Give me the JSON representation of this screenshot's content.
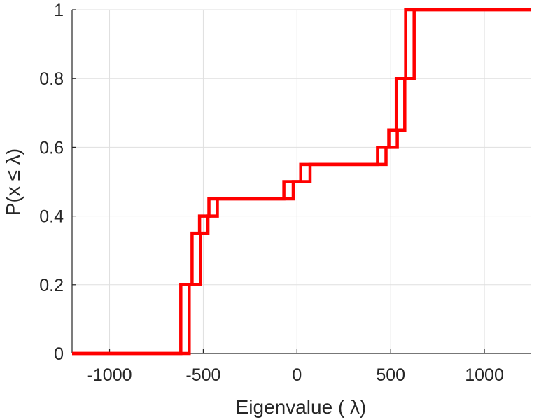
{
  "chart_data": {
    "type": "line",
    "step": true,
    "title": "",
    "xlabel": "Eigenvalue (  λ)",
    "ylabel": "P(x ≤ λ)",
    "xlim": [
      -1200,
      1250
    ],
    "ylim": [
      0,
      1
    ],
    "xticks": [
      -1000,
      -500,
      0,
      500,
      1000
    ],
    "xtick_labels": [
      "-1000",
      "-500",
      "0",
      "500",
      "1000"
    ],
    "yticks": [
      0,
      0.2,
      0.4,
      0.6,
      0.8,
      1
    ],
    "ytick_labels": [
      "0",
      "0.2",
      "0.4",
      "0.6",
      "0.8",
      "1"
    ],
    "grid": true,
    "color": "#ff0000",
    "series": [
      {
        "x": [
          -1200,
          -620,
          -620,
          -560,
          -560,
          -520,
          -520,
          -470,
          -470,
          -70,
          -70,
          20,
          20,
          430,
          430,
          490,
          490,
          530,
          530,
          580,
          580,
          1250
        ],
        "y": [
          0,
          0,
          0.2,
          0.2,
          0.35,
          0.35,
          0.4,
          0.4,
          0.45,
          0.45,
          0.5,
          0.5,
          0.55,
          0.55,
          0.6,
          0.6,
          0.65,
          0.65,
          0.8,
          0.8,
          1,
          1
        ]
      },
      {
        "x": [
          -1200,
          -575,
          -575,
          -515,
          -515,
          -475,
          -475,
          -425,
          -425,
          -20,
          -20,
          70,
          70,
          475,
          475,
          535,
          535,
          575,
          575,
          625,
          625,
          1250
        ],
        "y": [
          0,
          0,
          0.2,
          0.2,
          0.35,
          0.35,
          0.4,
          0.4,
          0.45,
          0.45,
          0.5,
          0.5,
          0.55,
          0.55,
          0.6,
          0.6,
          0.65,
          0.65,
          0.8,
          0.8,
          1,
          1
        ]
      }
    ]
  }
}
